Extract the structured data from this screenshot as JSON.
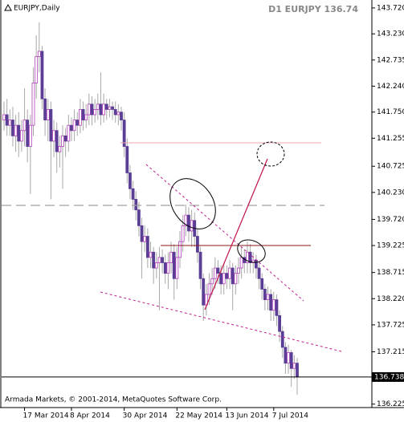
{
  "chart_data": {
    "type": "candlestick",
    "title": "EURJPY,Daily",
    "info": "D1 EURJPY 136.74",
    "footer": "Armada Markets, © 2001-2014, MetaQuotes Software Corp.",
    "current_price": 136.738,
    "up_color": "#b040b8",
    "down_color": "#5b3e96",
    "wick_color": "#a8a8a8",
    "categories": [
      null,
      null,
      null,
      null,
      null,
      null,
      null,
      "17 Mar 2014",
      null,
      null,
      null,
      null,
      null,
      null,
      null,
      null,
      null,
      null,
      null,
      null,
      null,
      null,
      null,
      "8 Apr 2014",
      null,
      null,
      null,
      null,
      null,
      null,
      null,
      null,
      null,
      null,
      null,
      null,
      null,
      null,
      null,
      null,
      null,
      "30 Apr 2014",
      null,
      null,
      null,
      null,
      null,
      null,
      null,
      null,
      null,
      null,
      null,
      null,
      null,
      null,
      null,
      null,
      null,
      "22 May 2014",
      null,
      null,
      null,
      null,
      null,
      null,
      null,
      null,
      null,
      null,
      null,
      null,
      null,
      null,
      null,
      null,
      "13 Jun 2014",
      null,
      null,
      null,
      null,
      null,
      null,
      null,
      null,
      null,
      null,
      null,
      null,
      null,
      null,
      null,
      "7 Jul 2014",
      null,
      null,
      null,
      null,
      null,
      null,
      null,
      null
    ],
    "open": [
      141.6,
      141.7,
      141.5,
      141.6,
      141.3,
      141.5,
      141.2,
      141.4,
      141.6,
      141.1,
      141.5,
      142.3,
      142.8,
      142.9,
      142.0,
      141.6,
      141.8,
      141.2,
      141.4,
      141.0,
      141.1,
      141.3,
      141.2,
      141.5,
      141.4,
      141.6,
      141.5,
      141.8,
      141.6,
      141.7,
      141.9,
      141.7,
      141.8,
      141.9,
      141.7,
      141.9,
      141.8,
      141.85,
      141.8,
      141.7,
      141.75,
      141.6,
      141.1,
      140.6,
      140.3,
      140.1,
      139.9,
      139.6,
      139.3,
      139.4,
      139.0,
      139.1,
      138.8,
      138.9,
      139.0,
      138.9,
      138.7,
      138.9,
      139.1,
      138.6,
      139.0,
      139.3,
      139.6,
      139.8,
      139.5,
      139.7,
      139.4,
      139.1,
      138.6,
      138.1,
      138.3,
      138.5,
      138.6,
      138.8,
      138.7,
      138.5,
      138.7,
      138.6,
      138.8,
      138.5,
      138.7,
      138.8,
      139.0,
      138.9,
      139.1,
      138.9,
      138.95,
      138.8,
      138.6,
      138.4,
      138.2,
      138.3,
      138.0,
      138.2,
      137.9,
      137.6,
      137.3,
      137.0,
      137.2,
      136.9,
      137.0
    ],
    "high": [
      141.95,
      142.0,
      141.8,
      141.85,
      141.7,
      141.75,
      141.6,
      142.2,
      141.8,
      141.7,
      142.6,
      143.2,
      143.45,
      143.0,
      142.2,
      142.0,
      141.95,
      141.6,
      141.55,
      141.3,
      141.5,
      141.45,
      141.7,
      141.65,
      141.8,
      141.75,
      142.0,
      141.95,
      141.9,
      142.1,
      142.05,
      142.0,
      142.1,
      142.5,
      142.1,
      142.0,
      142.0,
      141.95,
      141.95,
      141.9,
      141.85,
      141.75,
      141.25,
      140.75,
      140.45,
      140.25,
      140.05,
      139.75,
      139.6,
      139.55,
      139.3,
      139.2,
      139.1,
      139.2,
      139.15,
      139.05,
      139.1,
      139.3,
      139.25,
      139.2,
      139.5,
      139.8,
      140.0,
      139.95,
      139.9,
      139.85,
      139.55,
      139.2,
      138.7,
      138.5,
      138.7,
      138.8,
      139.0,
      138.95,
      138.85,
      138.9,
      138.85,
      138.95,
      138.9,
      138.85,
      139.0,
      139.2,
      139.15,
      139.3,
      139.25,
      139.1,
      139.05,
      138.9,
      138.7,
      138.5,
      138.45,
      138.4,
      138.35,
      138.3,
      138.0,
      137.7,
      137.4,
      137.35,
      137.25,
      137.15,
      137.1
    ],
    "low": [
      141.4,
      141.3,
      141.3,
      141.1,
      141.0,
      140.9,
      141.0,
      141.1,
      140.8,
      140.2,
      141.3,
      142.0,
      142.5,
      141.8,
      141.3,
      141.2,
      140.1,
      140.9,
      140.6,
      140.7,
      140.3,
      140.9,
      141.0,
      141.2,
      141.2,
      141.3,
      141.35,
      141.4,
      141.45,
      141.5,
      141.5,
      141.55,
      141.6,
      141.5,
      141.55,
      141.6,
      141.65,
      141.6,
      141.55,
      141.5,
      141.4,
      140.9,
      140.4,
      140.1,
      139.9,
      139.7,
      139.4,
      138.6,
      139.1,
      138.8,
      138.8,
      138.5,
      138.6,
      138.0,
      138.7,
      138.5,
      138.4,
      138.7,
      138.2,
      138.4,
      138.8,
      139.1,
      139.4,
      139.3,
      139.2,
      139.2,
      138.9,
      138.4,
      137.8,
      137.9,
      138.1,
      138.3,
      138.4,
      138.5,
      138.3,
      138.3,
      138.4,
      138.4,
      138.0,
      138.3,
      138.5,
      138.6,
      138.7,
      138.7,
      138.7,
      138.7,
      138.6,
      138.4,
      138.2,
      138.0,
      138.0,
      137.8,
      137.8,
      137.7,
      137.4,
      137.1,
      136.8,
      136.8,
      136.55,
      136.7,
      136.4
    ],
    "close": [
      141.7,
      141.5,
      141.6,
      141.3,
      141.5,
      141.2,
      141.4,
      141.6,
      141.1,
      141.5,
      142.3,
      142.8,
      142.9,
      142.0,
      141.6,
      141.8,
      141.2,
      141.4,
      141.0,
      141.1,
      141.3,
      141.2,
      141.5,
      141.4,
      141.6,
      141.5,
      141.8,
      141.6,
      141.7,
      141.9,
      141.7,
      141.8,
      141.9,
      141.7,
      141.9,
      141.8,
      141.85,
      141.8,
      141.7,
      141.75,
      141.6,
      141.1,
      140.6,
      140.3,
      140.1,
      139.9,
      139.6,
      139.3,
      139.4,
      139.0,
      139.1,
      138.8,
      138.9,
      139.0,
      138.9,
      138.7,
      138.9,
      139.1,
      138.6,
      139.0,
      139.3,
      139.6,
      139.8,
      139.5,
      139.7,
      139.4,
      139.1,
      138.6,
      138.1,
      138.3,
      138.5,
      138.6,
      138.8,
      138.7,
      138.5,
      138.7,
      138.6,
      138.8,
      138.5,
      138.7,
      138.8,
      139.0,
      138.9,
      139.1,
      138.9,
      138.95,
      138.8,
      138.6,
      138.4,
      138.2,
      138.3,
      138.0,
      138.2,
      137.9,
      137.6,
      137.3,
      137.0,
      137.2,
      136.9,
      137.0,
      136.74
    ],
    "ylim": [
      136.16,
      143.84
    ],
    "yticks": [
      {
        "value": 143.72,
        "label": "143.720"
      },
      {
        "value": 143.23,
        "label": "143.230"
      },
      142.735,
      {
        "value": 142.24,
        "label": "142.240"
      },
      {
        "value": 141.75,
        "label": "141.750"
      },
      141.255,
      140.725,
      {
        "value": 140.23,
        "label": "140.230"
      },
      {
        "value": 139.72,
        "label": "139.720"
      },
      139.225,
      138.715,
      {
        "value": 138.22,
        "label": "138.220"
      },
      137.725,
      137.215,
      136.225
    ],
    "grid": false
  }
}
